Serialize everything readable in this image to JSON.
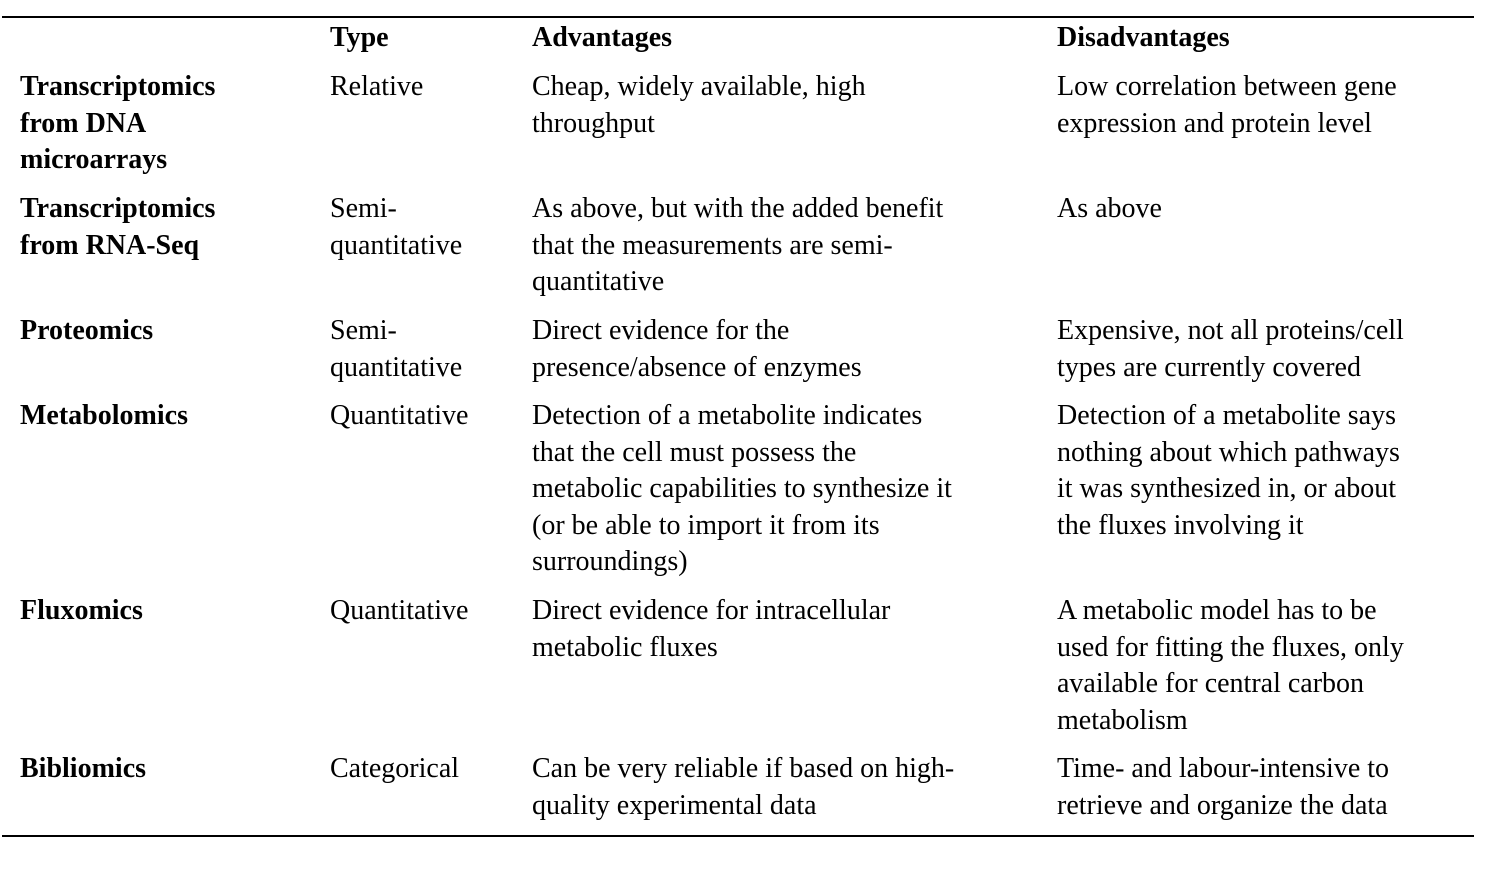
{
  "table": {
    "headers": {
      "name": "",
      "type": "Type",
      "advantages": "Advantages",
      "disadvantages": "Disadvantages"
    },
    "rows": [
      {
        "name": "Transcriptomics\nfrom DNA\nmicroarrays",
        "type": "Relative",
        "advantages": "Cheap, widely available, high\nthroughput",
        "disadvantages": "Low correlation between gene\nexpression and protein level"
      },
      {
        "name": "Transcriptomics\nfrom RNA-Seq",
        "type": "Semi-\nquantitative",
        "advantages": "As above, but with the added benefit\nthat the measurements are semi-\nquantitative",
        "disadvantages": "As above"
      },
      {
        "name": "Proteomics",
        "type": "Semi-\nquantitative",
        "advantages": "Direct evidence for the\npresence/absence of enzymes",
        "disadvantages": "Expensive, not all proteins/cell\ntypes are currently covered"
      },
      {
        "name": "Metabolomics",
        "type": "Quantitative",
        "advantages": "Detection of a metabolite indicates\nthat the cell must possess the\nmetabolic capabilities to synthesize it\n(or be able to import it from its\nsurroundings)",
        "disadvantages": "Detection of a metabolite says\nnothing about which pathways\nit was synthesized in, or about\nthe fluxes involving it"
      },
      {
        "name": "Fluxomics",
        "type": "Quantitative",
        "advantages": "Direct evidence for intracellular\nmetabolic fluxes",
        "disadvantages": "A metabolic model has to be\nused for fitting the fluxes, only\navailable for central carbon\nmetabolism"
      },
      {
        "name": "Bibliomics",
        "type": "Categorical",
        "advantages": "Can be very reliable if based on high-\nquality experimental data",
        "disadvantages": "Time- and labour-intensive to\nretrieve and organize the data"
      }
    ]
  }
}
